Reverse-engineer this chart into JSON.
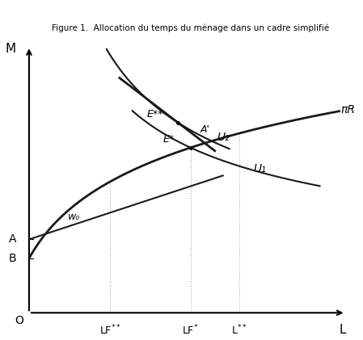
{
  "title": "Figure 1.  Allocation du temps du ménage dans un cadre simplifié",
  "xlim": [
    0,
    10
  ],
  "ylim": [
    0,
    10
  ],
  "origin_label": "O",
  "x_label": "L",
  "y_label": "M",
  "A_y": 2.7,
  "B_y": 2.0,
  "LF_ss_x": 2.5,
  "LF_s_x": 5.0,
  "L_ss_x": 6.5,
  "piR_label": "πR",
  "U1_label": "U₁",
  "U2_label": "U₂",
  "E_star_label": "E*",
  "E_ss_label": "E**",
  "Aprime_label": "A'",
  "w0_label": "w₀",
  "background_color": "#ffffff",
  "curve_color": "#1a1a1a",
  "dotted_color": "#aaaaaa",
  "lw_main": 2.0,
  "lw_indiff": 1.5,
  "lw_line": 1.5,
  "lw_dotted": 0.8
}
